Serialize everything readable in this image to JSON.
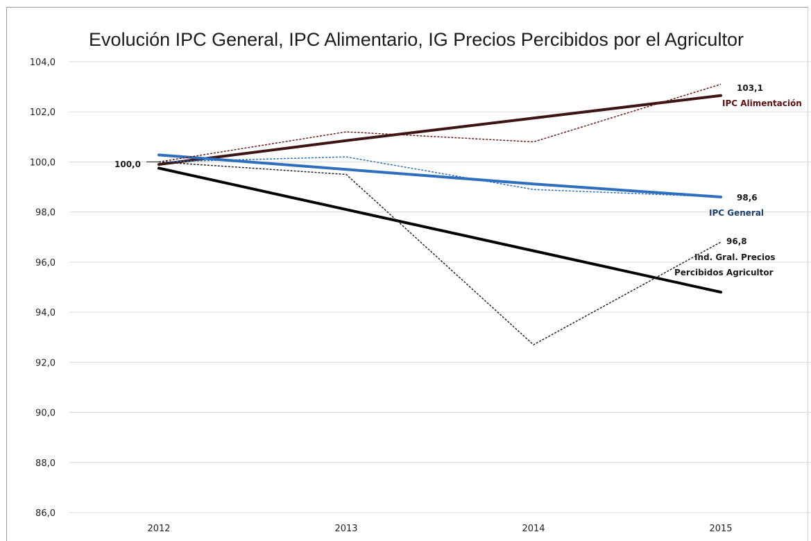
{
  "chart_data": {
    "type": "line",
    "title": "Evolución IPC General, IPC Alimentario, IG Precios Percibidos por el Agricultor",
    "xlabel": "",
    "ylabel": "",
    "categories": [
      "2012",
      "2013",
      "2014",
      "2015"
    ],
    "ylim": [
      86,
      104
    ],
    "yticks": [
      "86,0",
      "88,0",
      "90,0",
      "92,0",
      "94,0",
      "96,0",
      "98,0",
      "100,0",
      "102,0",
      "104,0"
    ],
    "grid": true,
    "series": [
      {
        "name": "IPC Alimentación",
        "style": "dashed",
        "color": "#6b1a1a",
        "values": [
          100.0,
          101.2,
          100.8,
          103.1
        ]
      },
      {
        "name": "IPC General",
        "style": "dashed",
        "color": "#2e6fbd",
        "values": [
          100.0,
          100.2,
          98.9,
          98.6
        ]
      },
      {
        "name": "Ind. Gral. Precios Percibidos Agricultor",
        "style": "dashed",
        "color": "#222222",
        "values": [
          100.0,
          99.5,
          92.7,
          96.8
        ]
      }
    ],
    "trendlines": [
      {
        "of": "IPC Alimentación",
        "color": "#3d1414",
        "values": [
          99.9,
          100.85,
          101.75,
          102.65
        ]
      },
      {
        "of": "IPC General",
        "color": "#2e6fbd",
        "values": [
          100.28,
          99.7,
          99.12,
          98.6
        ]
      },
      {
        "of": "Ind. Gral. Precios Percibidos Agricultor",
        "color": "#000000",
        "values": [
          99.75,
          98.1,
          96.45,
          94.8
        ]
      }
    ],
    "annotations": {
      "start": "100,0",
      "alim_value": "103,1",
      "alim_label": "IPC Alimentación",
      "general_value": "98,6",
      "general_label": "IPC General",
      "agric_value": "96,8",
      "agric_label_1": "Ind. Gral. Precios",
      "agric_label_2": "Percibidos Agricultor"
    }
  }
}
